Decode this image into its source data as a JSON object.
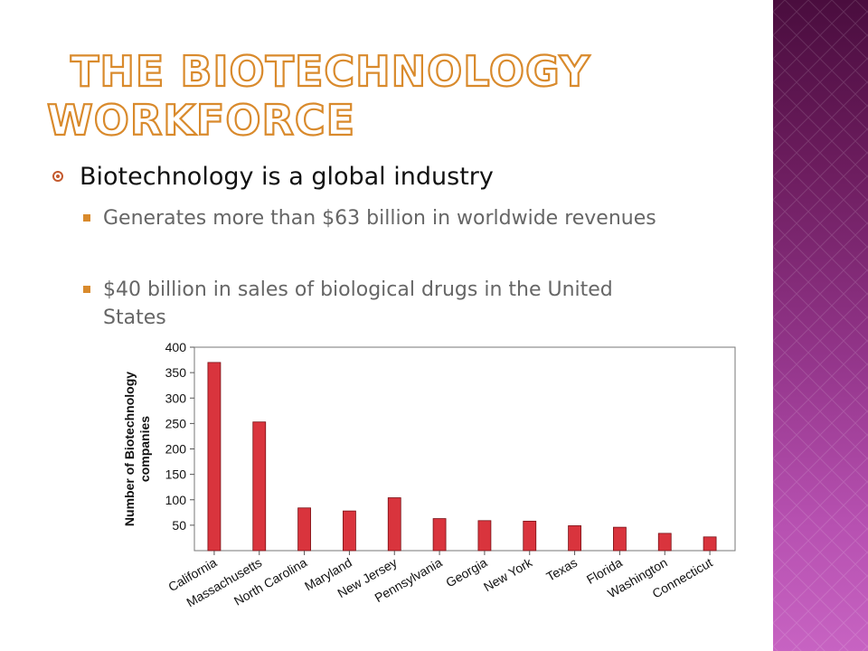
{
  "slide": {
    "title_line1": "The Biotechnology",
    "title_line2": "Workforce",
    "bullet": "Biotechnology is a global industry",
    "sub_bullets": [
      "Generates more than $63 billion in worldwide revenues",
      "$40 billion in sales of biological drugs in the United States"
    ]
  },
  "colors": {
    "bar": "#d9343d",
    "title_outline": "#d98a2c",
    "accent": "#c45a2e",
    "side_panel": "#8a2d7e"
  },
  "chart_data": {
    "type": "bar",
    "categories": [
      "California",
      "Massachusetts",
      "North Carolina",
      "Maryland",
      "New Jersey",
      "Pennsylvania",
      "Georgia",
      "New York",
      "Texas",
      "Florida",
      "Washington",
      "Connecticut"
    ],
    "values": [
      370,
      253,
      84,
      78,
      104,
      63,
      59,
      58,
      49,
      46,
      34,
      27
    ],
    "ylabel": "Number of Biotechnology companies",
    "xlabel": "",
    "ylim": [
      0,
      400
    ],
    "yticks": [
      50,
      100,
      150,
      200,
      250,
      300,
      350,
      400
    ],
    "grid": false
  }
}
